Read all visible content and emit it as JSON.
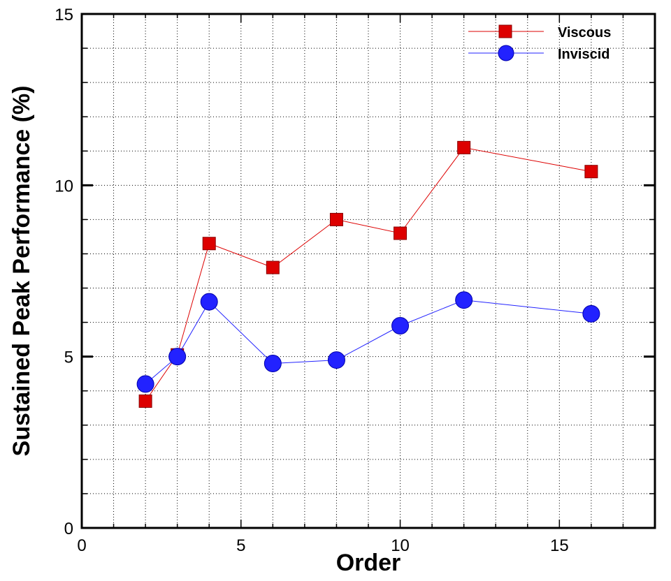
{
  "chart_data": {
    "type": "line",
    "title": "",
    "xlabel": "Order",
    "ylabel": "Sustained Peak Performance (%)",
    "xlim": [
      0,
      18
    ],
    "ylim": [
      0,
      15
    ],
    "x_ticks": [
      0,
      5,
      10,
      15
    ],
    "y_ticks": [
      0,
      5,
      10,
      15
    ],
    "x_tick_labels": [
      "0",
      "5",
      "10",
      "15"
    ],
    "y_tick_labels": [
      "0",
      "5",
      "10",
      "15"
    ],
    "grid": true,
    "legend_position": "top-right",
    "series": [
      {
        "name": "Viscous",
        "color": "#dd0000",
        "marker": "square",
        "x": [
          2,
          3,
          4,
          6,
          8,
          10,
          12,
          16
        ],
        "y": [
          3.7,
          5.05,
          8.3,
          7.6,
          9.0,
          8.6,
          11.1,
          10.4
        ]
      },
      {
        "name": "Inviscid",
        "color": "#2222ff",
        "marker": "circle",
        "x": [
          2,
          3,
          4,
          6,
          8,
          10,
          12,
          16
        ],
        "y": [
          4.2,
          5.0,
          6.6,
          4.8,
          4.9,
          5.9,
          6.65,
          6.25
        ]
      }
    ]
  }
}
